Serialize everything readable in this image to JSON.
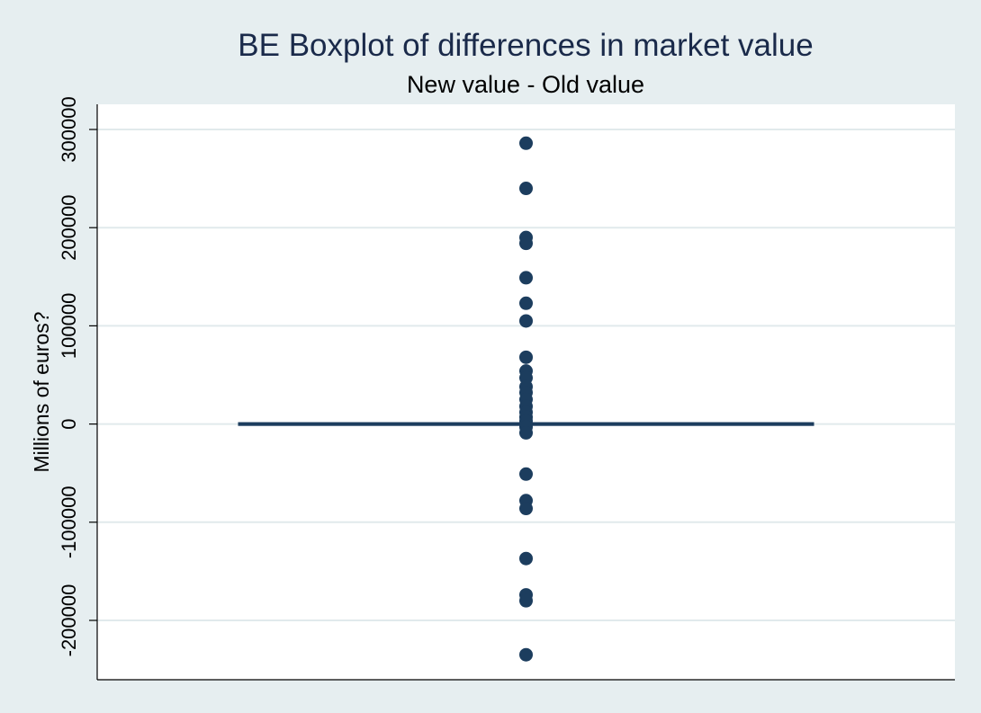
{
  "chart_data": {
    "type": "boxplot",
    "title": "BE Boxplot of differences in market value",
    "subtitle": "New value - Old value",
    "xlabel": "",
    "ylabel": "Millions of euros?",
    "ylim": [
      -250000,
      325000
    ],
    "yticks": [
      -200000,
      -100000,
      0,
      100000,
      200000,
      300000
    ],
    "ytick_labels": [
      "-200000",
      "-100000",
      "0",
      "100000",
      "200000",
      "300000"
    ],
    "grid": true,
    "legend": "none",
    "box": {
      "median": 0,
      "q1": 0,
      "q3": 0,
      "whisker_low": 0,
      "whisker_high": 0
    },
    "outliers": [
      286000,
      240000,
      190000,
      184000,
      149000,
      123000,
      105000,
      68000,
      54000,
      47000,
      38000,
      32000,
      25000,
      18000,
      12000,
      7000,
      3000,
      -3000,
      -9000,
      -51000,
      -78000,
      -86000,
      -137000,
      -174000,
      -180000,
      -235000
    ],
    "colors": {
      "background": "#e6eef0",
      "plot_background": "#ffffff",
      "grid": "#e1eaec",
      "marker": "#1c3d5e",
      "box_line": "#1c3d5e",
      "title": "#1a2a4a",
      "text": "#000000"
    }
  }
}
